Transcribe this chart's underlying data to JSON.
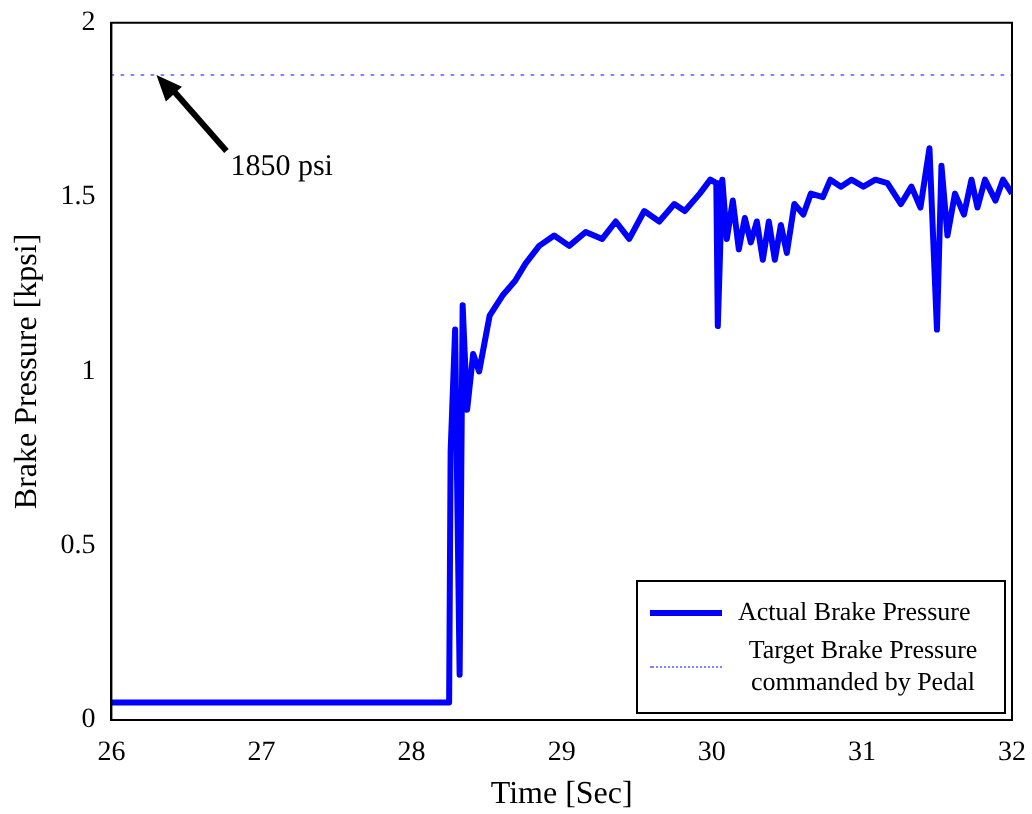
{
  "chart_data": {
    "type": "line",
    "xlabel": "Time [Sec]",
    "ylabel": "Brake Pressure [kpsi]",
    "xlim": [
      26,
      32
    ],
    "xticks": [
      26,
      27,
      28,
      29,
      30,
      31,
      32
    ],
    "ylim": [
      0,
      2
    ],
    "yticks": [
      0,
      0.5,
      1,
      1.5,
      2
    ],
    "grid": false,
    "legend": "bottom right",
    "marker": "none",
    "series": [
      {
        "name": "Actual Brake Pressure",
        "color": "#0000ff",
        "line_style": "solid",
        "x": [
          26,
          26.5,
          27,
          27.5,
          28,
          28.25,
          28.26,
          28.29,
          28.32,
          28.34,
          28.37,
          28.41,
          28.45,
          28.52,
          28.61,
          28.69,
          28.76,
          28.85,
          28.95,
          29.05,
          29.16,
          29.27,
          29.36,
          29.45,
          29.55,
          29.65,
          29.75,
          29.82,
          29.92,
          29.99,
          30.03,
          30.04,
          30.07,
          30.1,
          30.14,
          30.18,
          30.22,
          30.26,
          30.3,
          30.34,
          30.38,
          30.42,
          30.46,
          30.5,
          30.55,
          30.61,
          30.66,
          30.74,
          30.79,
          30.86,
          30.93,
          31.01,
          31.09,
          31.17,
          31.26,
          31.33,
          31.39,
          31.45,
          31.5,
          31.53,
          31.57,
          31.62,
          31.68,
          31.73,
          31.77,
          31.82,
          31.89,
          31.94,
          32
        ],
        "values": [
          0.05,
          0.05,
          0.05,
          0.05,
          0.05,
          0.05,
          0.77,
          1.12,
          0.13,
          1.19,
          0.89,
          1.05,
          1.0,
          1.16,
          1.22,
          1.26,
          1.31,
          1.36,
          1.39,
          1.36,
          1.4,
          1.38,
          1.43,
          1.38,
          1.46,
          1.43,
          1.48,
          1.46,
          1.51,
          1.55,
          1.54,
          1.13,
          1.55,
          1.38,
          1.49,
          1.35,
          1.44,
          1.37,
          1.43,
          1.32,
          1.43,
          1.32,
          1.42,
          1.34,
          1.48,
          1.45,
          1.51,
          1.5,
          1.55,
          1.53,
          1.55,
          1.53,
          1.55,
          1.54,
          1.48,
          1.53,
          1.47,
          1.64,
          1.12,
          1.59,
          1.39,
          1.51,
          1.45,
          1.55,
          1.47,
          1.55,
          1.49,
          1.55,
          1.51
        ]
      },
      {
        "name": "Target Brake Pressure commanded by Pedal",
        "color": "#8080ff",
        "line_style": "dotted",
        "x": [
          26,
          32
        ],
        "values": [
          1.85,
          1.85
        ]
      }
    ],
    "annotations": [
      {
        "text": "1850 psi",
        "x": 26.3,
        "y": 1.85
      }
    ]
  }
}
